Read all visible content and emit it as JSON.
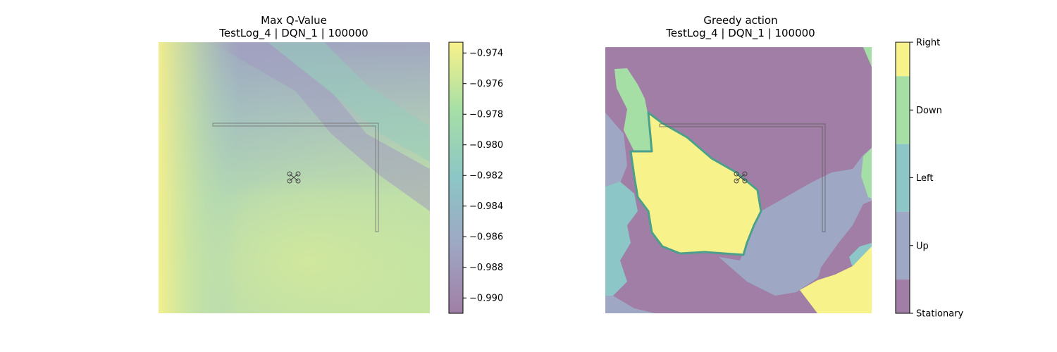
{
  "chart_data": [
    {
      "type": "heatmap",
      "title": "Max Q-Value",
      "subtitle": "TestLog_4 | DQN_1 | 100000",
      "colorbar": {
        "colormap": "viridis",
        "alpha": 0.5,
        "range": [
          -0.991,
          -0.9733
        ],
        "ticks": [
          "−0.974",
          "−0.976",
          "−0.978",
          "−0.980",
          "−0.982",
          "−0.984",
          "−0.986",
          "−0.988",
          "−0.990"
        ],
        "tick_values": [
          -0.974,
          -0.976,
          -0.978,
          -0.98,
          -0.982,
          -0.984,
          -0.986,
          -0.988,
          -0.99
        ]
      },
      "axes_visible": false,
      "overlay": [
        "L-shaped wall outline",
        "drone icon"
      ]
    },
    {
      "type": "heatmap",
      "title": "Greedy action",
      "subtitle": "TestLog_4 | DQN_1 | 100000",
      "colorbar": {
        "colormap": "viridis",
        "alpha": 0.5,
        "categories": [
          "Stationary",
          "Up",
          "Left",
          "Down",
          "Right"
        ]
      },
      "axes_visible": false,
      "overlay": [
        "L-shaped wall outline",
        "drone icon"
      ]
    }
  ]
}
